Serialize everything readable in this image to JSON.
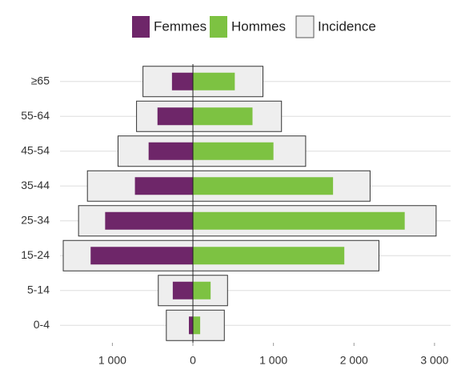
{
  "chart_data": {
    "type": "pyramid",
    "categories": [
      "≥65",
      "55-64",
      "45-54",
      "35-44",
      "25-34",
      "15-24",
      "5-14",
      "0-4"
    ],
    "series": [
      {
        "name": "Femmes",
        "color": "#6e2669",
        "values": [
          -260,
          -440,
          -550,
          -720,
          -1090,
          -1270,
          -250,
          -50
        ]
      },
      {
        "name": "Hommes",
        "color": "#7dc242",
        "values": [
          520,
          740,
          1000,
          1740,
          2630,
          1880,
          220,
          90
        ]
      },
      {
        "name": "Incidence",
        "color": "#eeeeee",
        "values_left": [
          -620,
          -700,
          -930,
          -1310,
          -1420,
          -1610,
          -430,
          -330
        ],
        "values_right": [
          870,
          1100,
          1400,
          2200,
          3020,
          2310,
          430,
          390
        ]
      }
    ],
    "xlim": [
      -1650,
      3150
    ],
    "xticks": [
      {
        "value": -1000,
        "label": "1 000"
      },
      0,
      {
        "value": 1000,
        "label": "1 000"
      },
      {
        "value": 2000,
        "label": "2 000"
      },
      {
        "value": 3000,
        "label": "3 000"
      }
    ],
    "grid": true,
    "legend": "top"
  }
}
